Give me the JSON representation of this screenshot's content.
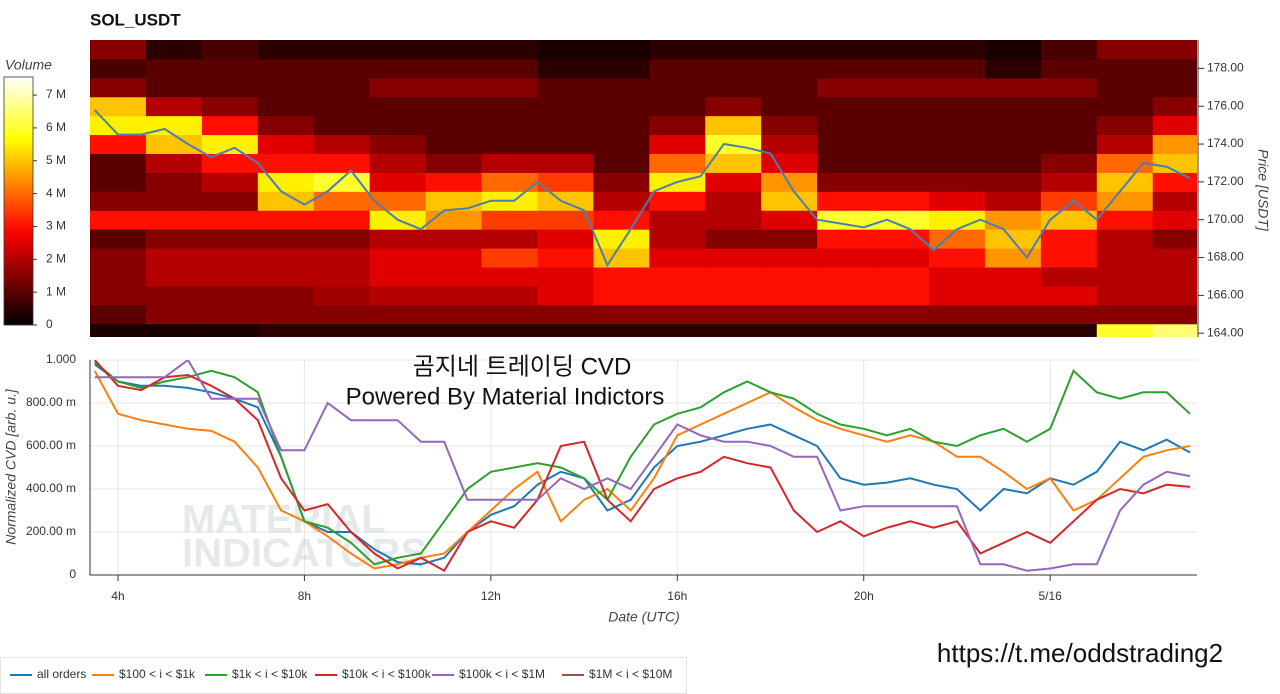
{
  "page": {
    "link": "https://t.me/oddstrading2"
  },
  "chart_data": [
    {
      "type": "heatmap",
      "title": "SOL_USDT",
      "colorbar_label": "Volume",
      "colormap": "hot",
      "clim": [
        0,
        7.55
      ],
      "cticks": [
        0,
        {
          "value": 1,
          "label": "1 M"
        },
        {
          "value": 2,
          "label": "2 M"
        },
        {
          "value": 3,
          "label": "3 M"
        },
        {
          "value": 4,
          "label": "4 M"
        },
        {
          "value": 5,
          "label": "5 M"
        },
        {
          "value": 6,
          "label": "6 M"
        },
        {
          "value": 7,
          "label": "7 M"
        }
      ],
      "xlim": [
        3.4,
        27.15
      ],
      "ylim": [
        163.8,
        179.5
      ],
      "yaxis_position": "right",
      "ylabel": "Price [USDT]",
      "yticks": [
        {
          "value": 164,
          "label": "164.00"
        },
        {
          "value": 166,
          "label": "166.00"
        },
        {
          "value": 168,
          "label": "168.00"
        },
        {
          "value": 170,
          "label": "170.00"
        },
        {
          "value": 172,
          "label": "172.00"
        },
        {
          "value": 174,
          "label": "174.00"
        },
        {
          "value": 176,
          "label": "176.00"
        },
        {
          "value": 178,
          "label": "178.00"
        }
      ],
      "xbins": [
        3.4,
        4.6,
        5.8,
        7.0,
        8.2,
        9.4,
        10.6,
        11.8,
        13.0,
        14.2,
        15.4,
        16.6,
        17.8,
        19.0,
        20.2,
        21.4,
        22.6,
        23.8,
        25.0,
        26.2,
        27.4
      ],
      "ybins": [
        163.5,
        164.5,
        165.5,
        166.5,
        167.5,
        168.5,
        169.5,
        170.5,
        171.5,
        172.5,
        173.5,
        174.5,
        175.5,
        176.5,
        177.5,
        178.5,
        179.5
      ],
      "z": [
        [
          0.3,
          0.3,
          0.3,
          0.5,
          0.5,
          0.5,
          0.5,
          0.5,
          0.5,
          0.5,
          0.5,
          0.5,
          0.5,
          0.5,
          0.5,
          0.5,
          0.5,
          0.5,
          6,
          6.5
        ],
        [
          1,
          1.5,
          1.5,
          1.5,
          1.5,
          1.5,
          1.5,
          1.5,
          1.5,
          1.5,
          1.5,
          1.5,
          1.5,
          1.5,
          1.5,
          1.5,
          1.5,
          1.5,
          1.5,
          1.5
        ],
        [
          1.5,
          1.5,
          1.5,
          1.5,
          1.8,
          2,
          2,
          2,
          2.5,
          3,
          3,
          3,
          3,
          3,
          3,
          2.5,
          2.5,
          2.5,
          2,
          2
        ],
        [
          1.5,
          2,
          2,
          2,
          2,
          2.5,
          2.5,
          2.5,
          2.5,
          3,
          3,
          3,
          3,
          3,
          3,
          2.5,
          2.5,
          2,
          2,
          2
        ],
        [
          1.5,
          2,
          2,
          2,
          2,
          2.5,
          2.5,
          3.5,
          3,
          5,
          2.5,
          2.5,
          2.5,
          2.5,
          2.5,
          3,
          4.5,
          3,
          2,
          2
        ],
        [
          1,
          1.5,
          1.5,
          1.5,
          1.5,
          2,
          2,
          2,
          2.5,
          5.5,
          2,
          1.5,
          1.5,
          3,
          3,
          4,
          5,
          3,
          2,
          1.5
        ],
        [
          3,
          3,
          3,
          3,
          3,
          5.5,
          4.5,
          3.5,
          3.5,
          3,
          2,
          2,
          2.5,
          6,
          6,
          5.5,
          4.5,
          5,
          3,
          2.5
        ],
        [
          1.5,
          1.5,
          1.5,
          5,
          4,
          4,
          5,
          5.5,
          5,
          2,
          3,
          2,
          5,
          3,
          3,
          2.5,
          2,
          3.5,
          4.5,
          2
        ],
        [
          1,
          1.5,
          2,
          5.5,
          6,
          2.5,
          3,
          4,
          3.5,
          1.5,
          5.5,
          2.5,
          4.5,
          1.5,
          1.5,
          1.5,
          1.5,
          2,
          5,
          3
        ],
        [
          1,
          2,
          3,
          3,
          3,
          2,
          1.5,
          2,
          2,
          1,
          4,
          5,
          2.5,
          1,
          1,
          1,
          1,
          1.5,
          4,
          5
        ],
        [
          3,
          5,
          5.5,
          2.5,
          2,
          1.5,
          1,
          1,
          1,
          1,
          2.5,
          6,
          2,
          1,
          1,
          1,
          1,
          1,
          2,
          4.5
        ],
        [
          5.5,
          5.5,
          3,
          1.5,
          1,
          1,
          1,
          1,
          1,
          1,
          1.5,
          5,
          1.5,
          1,
          1,
          1,
          1,
          1,
          1.5,
          2.5
        ],
        [
          5,
          2,
          1.5,
          1,
          1,
          1,
          1,
          1,
          1,
          1,
          1,
          1.5,
          1,
          1,
          1,
          1,
          1,
          1,
          1,
          1.5
        ],
        [
          1.5,
          1,
          1,
          1,
          1,
          1.5,
          1.5,
          1.5,
          1,
          1,
          1,
          1,
          1,
          1.5,
          1.5,
          1.5,
          1.5,
          1.5,
          1,
          1
        ],
        [
          0.8,
          1,
          1,
          1,
          1,
          1,
          1,
          1,
          0.5,
          0.5,
          1,
          1,
          1,
          1,
          1,
          1,
          0.5,
          1,
          1,
          1
        ],
        [
          1.5,
          0.5,
          0.8,
          0.5,
          0.5,
          0.5,
          0.5,
          0.5,
          0.3,
          0.3,
          0.5,
          0.5,
          0.5,
          0.5,
          0.5,
          0.5,
          0.3,
          0.8,
          1.5,
          1.5
        ]
      ],
      "x": [
        3.5,
        4,
        4.5,
        5,
        5.5,
        6,
        6.5,
        7,
        7.5,
        8,
        8.5,
        9,
        9.5,
        10,
        10.5,
        11,
        11.5,
        12,
        12.5,
        13,
        13.5,
        14,
        14.5,
        15,
        15.5,
        16,
        16.5,
        17,
        17.5,
        18,
        18.5,
        19,
        19.5,
        20,
        20.5,
        21,
        21.5,
        22,
        22.5,
        23,
        23.5,
        24,
        24.5,
        25,
        25.5,
        26,
        26.5,
        27
      ],
      "line": {
        "color": "#4a7fb0",
        "values": [
          175.8,
          174.5,
          174.5,
          174.8,
          174,
          173.3,
          173.8,
          173,
          171.5,
          170.8,
          171.5,
          172.6,
          171,
          170,
          169.5,
          170.5,
          170.6,
          171,
          171,
          172,
          171,
          170.5,
          167.6,
          169.5,
          171.5,
          172,
          172.3,
          174,
          173.8,
          173.5,
          171.5,
          170,
          169.8,
          169.6,
          170,
          169.5,
          168.4,
          169.5,
          170,
          169.5,
          168,
          170,
          171,
          170,
          171.5,
          173,
          172.8,
          172.2
        ]
      }
    },
    {
      "type": "line",
      "xlabel": "Date (UTC)",
      "ylabel": "Normalized CVD [arb. u.]",
      "annotations": [
        "곰지네 트레이딩 CVD",
        "Powered By Material Indictors"
      ],
      "watermark": [
        "MATERIAL",
        "INDICATORS"
      ],
      "xlim": [
        3.4,
        27.15
      ],
      "xticks": [
        {
          "value": 4,
          "label": "4h"
        },
        {
          "value": 8,
          "label": "8h"
        },
        {
          "value": 12,
          "label": "12h"
        },
        {
          "value": 16,
          "label": "16h"
        },
        {
          "value": 20,
          "label": "20h"
        },
        {
          "value": 24,
          "label": "5/16"
        }
      ],
      "ylim": [
        0,
        1
      ],
      "yticks": [
        0,
        {
          "value": 0.2,
          "label": "200.00 m"
        },
        {
          "value": 0.4,
          "label": "400.00 m"
        },
        {
          "value": 0.6,
          "label": "600.00 m"
        },
        {
          "value": 0.8,
          "label": "800.00 m"
        },
        {
          "value": 1,
          "label": "1.000"
        }
      ],
      "grid": true,
      "x": [
        3.5,
        4,
        4.5,
        5,
        5.5,
        6,
        6.5,
        7,
        7.5,
        8,
        8.5,
        9,
        9.5,
        10,
        10.5,
        11,
        11.5,
        12,
        12.5,
        13,
        13.5,
        14,
        14.5,
        15,
        15.5,
        16,
        16.5,
        17,
        17.5,
        18,
        18.5,
        19,
        19.5,
        20,
        20.5,
        21,
        21.5,
        22,
        22.5,
        23,
        23.5,
        24,
        24.5,
        25,
        25.5,
        26,
        26.5,
        27
      ],
      "series": [
        {
          "name": "all orders",
          "color": "#1f77b4",
          "values": [
            0.98,
            0.9,
            0.88,
            0.88,
            0.87,
            0.85,
            0.82,
            0.78,
            0.55,
            0.25,
            0.2,
            0.2,
            0.12,
            0.06,
            0.05,
            0.08,
            0.2,
            0.28,
            0.32,
            0.42,
            0.48,
            0.45,
            0.3,
            0.35,
            0.5,
            0.6,
            0.62,
            0.65,
            0.68,
            0.7,
            0.65,
            0.6,
            0.45,
            0.42,
            0.43,
            0.45,
            0.42,
            0.4,
            0.3,
            0.4,
            0.38,
            0.45,
            0.42,
            0.48,
            0.62,
            0.58,
            0.63,
            0.57
          ]
        },
        {
          "name": "$100 < i < $1k",
          "color": "#ff7f0e",
          "values": [
            0.95,
            0.75,
            0.72,
            0.7,
            0.68,
            0.67,
            0.62,
            0.5,
            0.3,
            0.25,
            0.18,
            0.1,
            0.03,
            0.05,
            0.08,
            0.1,
            0.2,
            0.3,
            0.4,
            0.48,
            0.25,
            0.35,
            0.4,
            0.3,
            0.45,
            0.65,
            0.7,
            0.75,
            0.8,
            0.85,
            0.78,
            0.72,
            0.68,
            0.65,
            0.62,
            0.65,
            0.62,
            0.55,
            0.55,
            0.48,
            0.4,
            0.45,
            0.3,
            0.35,
            0.45,
            0.55,
            0.58,
            0.6
          ]
        },
        {
          "name": "$1k < i < $10k",
          "color": "#2ca02c",
          "values": [
            0.99,
            0.9,
            0.87,
            0.9,
            0.92,
            0.95,
            0.92,
            0.85,
            0.55,
            0.25,
            0.22,
            0.15,
            0.05,
            0.08,
            0.1,
            0.25,
            0.4,
            0.48,
            0.5,
            0.52,
            0.5,
            0.45,
            0.35,
            0.55,
            0.7,
            0.75,
            0.78,
            0.85,
            0.9,
            0.85,
            0.82,
            0.75,
            0.7,
            0.68,
            0.65,
            0.68,
            0.62,
            0.6,
            0.65,
            0.68,
            0.62,
            0.68,
            0.95,
            0.85,
            0.82,
            0.85,
            0.85,
            0.75
          ]
        },
        {
          "name": "$10k < i < $100k",
          "color": "#d62728",
          "values": [
            1.0,
            0.88,
            0.86,
            0.92,
            0.93,
            0.88,
            0.82,
            0.72,
            0.45,
            0.3,
            0.33,
            0.2,
            0.1,
            0.03,
            0.08,
            0.02,
            0.2,
            0.25,
            0.22,
            0.35,
            0.6,
            0.62,
            0.35,
            0.25,
            0.4,
            0.45,
            0.48,
            0.55,
            0.52,
            0.5,
            0.3,
            0.2,
            0.25,
            0.18,
            0.22,
            0.25,
            0.22,
            0.25,
            0.1,
            0.15,
            0.2,
            0.15,
            0.25,
            0.35,
            0.4,
            0.38,
            0.42,
            0.41
          ]
        },
        {
          "name": "$100k < i < $1M",
          "color": "#9467bd",
          "values": [
            0.92,
            0.92,
            0.92,
            0.92,
            1.0,
            0.82,
            0.82,
            0.82,
            0.58,
            0.58,
            0.8,
            0.72,
            0.72,
            0.72,
            0.62,
            0.62,
            0.35,
            0.35,
            0.35,
            0.35,
            0.45,
            0.4,
            0.45,
            0.4,
            0.55,
            0.7,
            0.65,
            0.62,
            0.62,
            0.6,
            0.55,
            0.55,
            0.3,
            0.32,
            0.32,
            0.32,
            0.32,
            0.32,
            0.05,
            0.05,
            0.02,
            0.03,
            0.05,
            0.05,
            0.3,
            0.42,
            0.48,
            0.46
          ]
        },
        {
          "name": "$1M < i < $10M",
          "color": "#8c564b",
          "values": [
            null,
            null,
            null,
            null,
            null,
            null,
            null,
            null,
            null,
            null,
            null,
            null,
            null,
            null,
            null,
            null,
            null,
            null,
            null,
            null,
            null,
            null,
            null,
            null,
            null,
            null,
            null,
            null,
            null,
            null,
            null,
            null,
            null,
            null,
            null,
            null,
            null,
            null,
            null,
            null,
            null,
            null,
            null,
            null,
            null,
            null,
            null,
            null
          ]
        }
      ]
    }
  ]
}
